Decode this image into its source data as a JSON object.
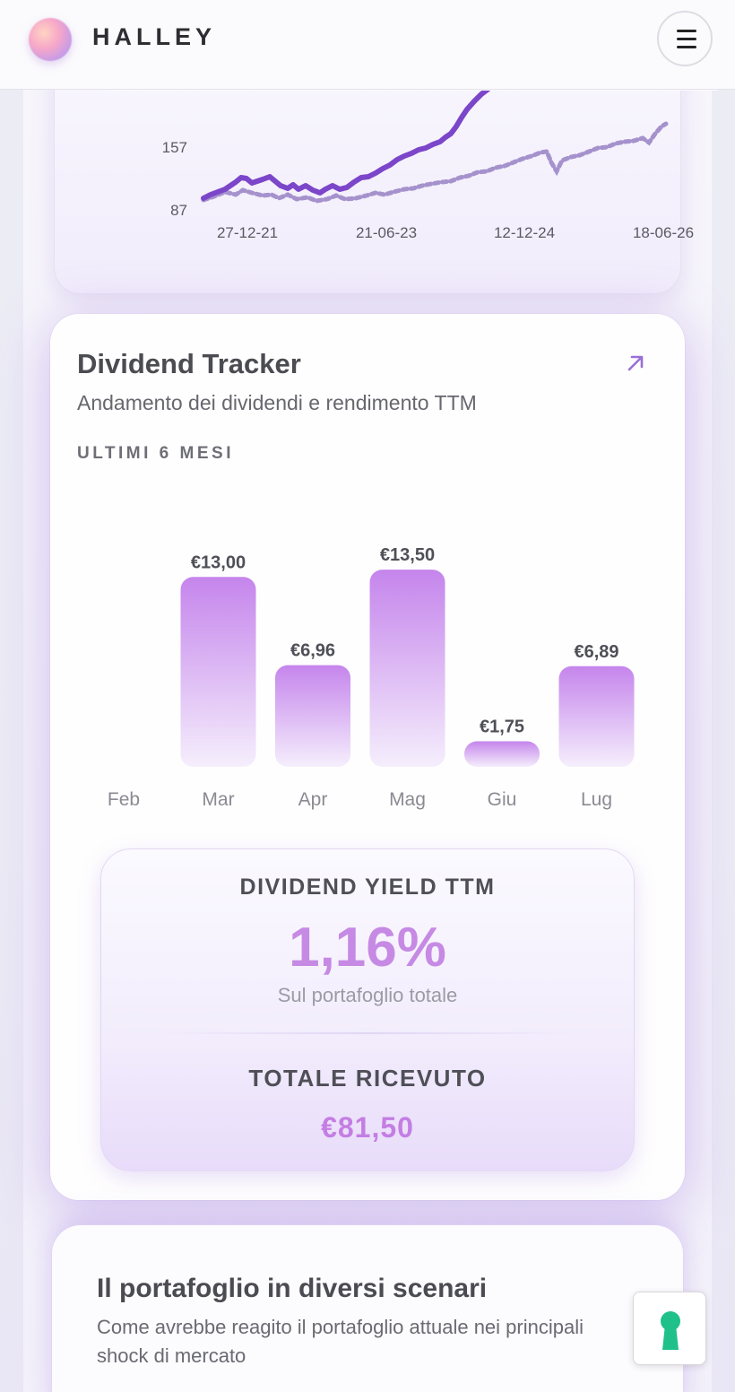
{
  "header": {
    "brand": "HALLEY",
    "logo_icon": "halley-logo-icon",
    "menu_icon": "hamburger-menu-icon"
  },
  "performance_chart": {
    "y_ticks": [
      "157",
      "87"
    ],
    "x_ticks": [
      "27-12-21",
      "21-06-23",
      "12-12-24",
      "18-06-26"
    ],
    "colors": {
      "portfolio": "#7b46c9",
      "benchmark": "#a592cc"
    }
  },
  "dividend": {
    "title": "Dividend Tracker",
    "subtitle": "Andamento dei dividendi e rendimento TTM",
    "period_label": "ULTIMI 6 MESI",
    "expand_icon": "arrow-up-right-icon",
    "bar_gradient_top": "#c585ec",
    "bar_gradient_bottom": "#f5eefc"
  },
  "chart_data": {
    "type": "bar",
    "categories": [
      "Feb",
      "Mar",
      "Apr",
      "Mag",
      "Giu",
      "Lug"
    ],
    "values": [
      0,
      13.0,
      6.96,
      13.5,
      1.75,
      6.89
    ],
    "value_labels": [
      "",
      "€13,00",
      "€6,96",
      "€13,50",
      "€1,75",
      "€6,89"
    ],
    "title": "",
    "xlabel": "",
    "ylabel": "",
    "ylim": [
      0,
      14
    ]
  },
  "yield": {
    "label": "DIVIDEND YIELD TTM",
    "value": "1,16%",
    "sub": "Sul portafoglio totale",
    "total_label": "TOTALE RICEVUTO",
    "total_value": "€81,50"
  },
  "scenarios": {
    "title": "Il portafoglio in diversi scenari",
    "subtitle": "Come avrebbe reagito il portafoglio attuale nei principali shock di mercato"
  },
  "floating_button": {
    "icon": "keyhole-icon",
    "icon_color": "#1fc08a"
  }
}
